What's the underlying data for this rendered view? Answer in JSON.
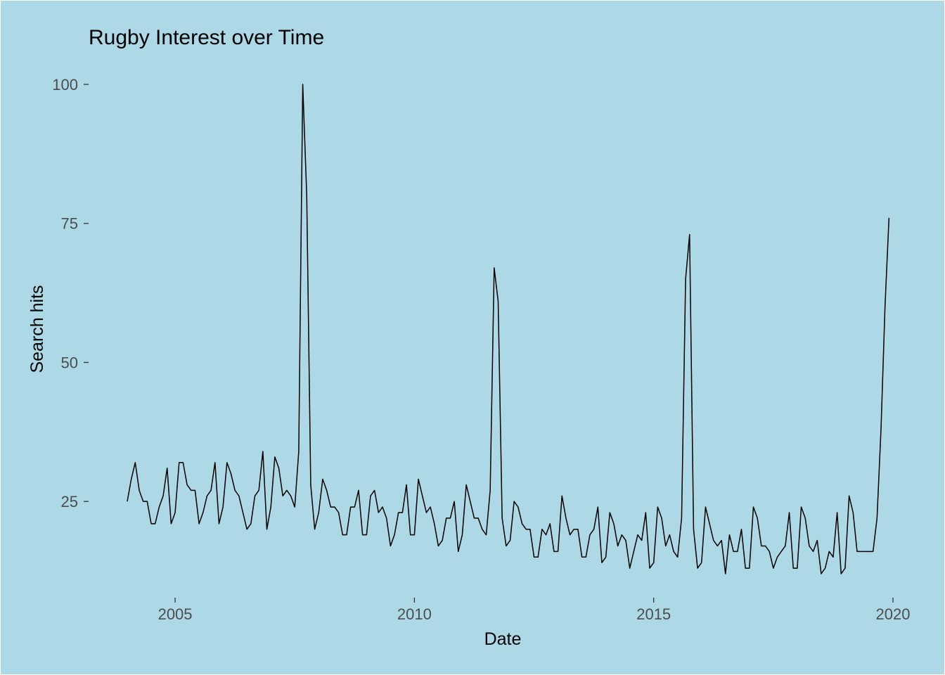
{
  "colors": {
    "panel": "#add8e6",
    "line": "#000000",
    "tick_text": "#4d4d4d",
    "label_text": "#000000"
  },
  "chart_data": {
    "type": "line",
    "title": "Rugby Interest over Time",
    "xlabel": "Date",
    "ylabel": "Search hits",
    "xlim": [
      2003.8,
      2020.4
    ],
    "ylim": [
      12,
      100
    ],
    "xticks": [
      2005,
      2010,
      2015,
      2020
    ],
    "xtick_labels": [
      "2005",
      "2010",
      "2015",
      "2020"
    ],
    "yticks": [
      25,
      50,
      75,
      100
    ],
    "ytick_labels": [
      "25",
      "50",
      "75",
      "100"
    ],
    "grid": false,
    "series": [
      {
        "name": "Search hits",
        "x_start": 2004.0,
        "x_step_months": 1,
        "values": [
          25,
          29,
          32,
          27,
          25,
          25,
          21,
          21,
          24,
          26,
          31,
          21,
          23,
          32,
          32,
          28,
          27,
          27,
          21,
          23,
          26,
          27,
          32,
          21,
          24,
          32,
          30,
          27,
          26,
          23,
          20,
          21,
          26,
          27,
          34,
          20,
          24,
          33,
          31,
          26,
          27,
          26,
          24,
          34,
          100,
          80,
          28,
          20,
          23,
          29,
          27,
          24,
          24,
          23,
          19,
          19,
          24,
          24,
          27,
          19,
          19,
          26,
          27,
          23,
          24,
          22,
          17,
          19,
          23,
          23,
          28,
          19,
          19,
          29,
          26,
          23,
          24,
          21,
          17,
          18,
          22,
          22,
          25,
          16,
          19,
          28,
          25,
          22,
          22,
          20,
          19,
          27,
          67,
          61,
          22,
          17,
          18,
          25,
          24,
          21,
          20,
          20,
          15,
          15,
          20,
          19,
          21,
          16,
          16,
          26,
          22,
          19,
          20,
          20,
          15,
          15,
          19,
          20,
          24,
          14,
          15,
          23,
          21,
          17,
          19,
          18,
          13,
          16,
          19,
          18,
          23,
          13,
          14,
          24,
          22,
          17,
          19,
          16,
          15,
          22,
          65,
          73,
          20,
          13,
          14,
          24,
          21,
          18,
          17,
          18,
          12,
          19,
          16,
          16,
          20,
          13,
          13,
          24,
          22,
          17,
          17,
          16,
          13,
          15,
          16,
          17,
          23,
          13,
          13,
          24,
          22,
          17,
          16,
          18,
          12,
          13,
          16,
          15,
          23,
          12,
          13,
          26,
          23,
          16,
          16,
          16,
          16,
          16,
          22,
          38,
          60,
          76
        ]
      }
    ]
  }
}
